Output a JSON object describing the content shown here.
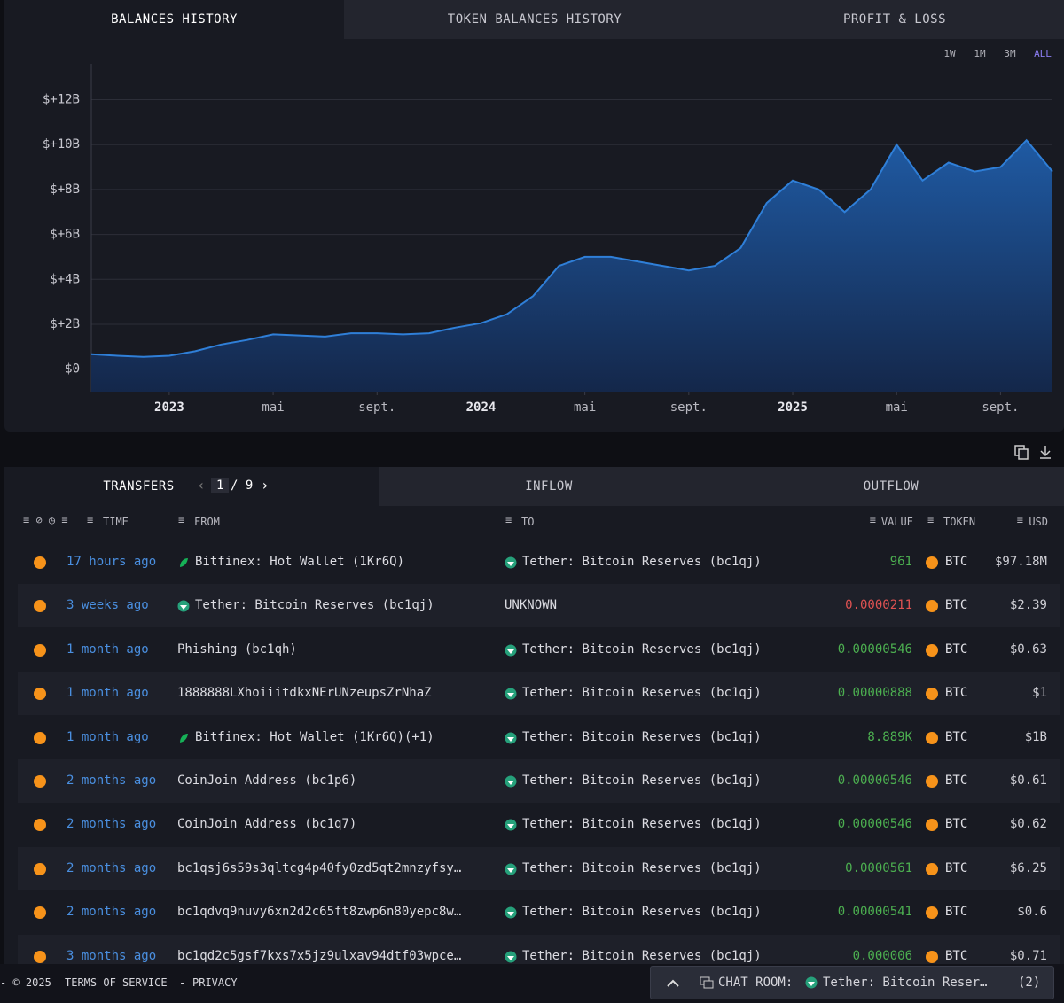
{
  "tabs": [
    "BALANCES HISTORY",
    "TOKEN BALANCES HISTORY",
    "PROFIT & LOSS"
  ],
  "ranges": [
    "1W",
    "1M",
    "3M",
    "ALL"
  ],
  "active_range": 3,
  "chart_data": {
    "type": "area",
    "color": "#2f7fd8",
    "x": [
      "2022-10",
      "2022-11",
      "2022-12",
      "2023-01",
      "2023-02",
      "2023-03",
      "2023-04",
      "2023-05",
      "2023-06",
      "2023-07",
      "2023-08",
      "2023-09",
      "2023-10",
      "2023-11",
      "2023-12",
      "2024-01",
      "2024-02",
      "2024-03",
      "2024-04",
      "2024-05",
      "2024-06",
      "2024-07",
      "2024-08",
      "2024-09",
      "2024-10",
      "2024-11",
      "2024-12",
      "2025-01",
      "2025-02",
      "2025-03",
      "2025-04",
      "2025-05",
      "2025-06",
      "2025-07",
      "2025-08",
      "2025-09",
      "2025-10",
      "2025-11"
    ],
    "values": [
      0.67,
      0.6,
      0.55,
      0.6,
      0.8,
      1.1,
      1.3,
      1.55,
      1.5,
      1.45,
      1.6,
      1.6,
      1.55,
      1.6,
      1.85,
      2.05,
      2.45,
      3.25,
      4.6,
      5.0,
      5.0,
      4.8,
      4.6,
      4.4,
      4.6,
      5.4,
      7.4,
      8.4,
      8.0,
      7.0,
      8.0,
      10.0,
      8.4,
      9.2,
      8.8,
      9.0,
      10.2,
      8.8
    ],
    "xlim": [
      "2022-10",
      "2025-11"
    ],
    "xticks": [
      {
        "value": "2023-01",
        "label": "2023"
      },
      {
        "value": "2023-05",
        "label": "mai"
      },
      {
        "value": "2023-09",
        "label": "sept."
      },
      {
        "value": "2024-01",
        "label": "2024"
      },
      {
        "value": "2024-05",
        "label": "mai"
      },
      {
        "value": "2024-09",
        "label": "sept."
      },
      {
        "value": "2025-01",
        "label": "2025"
      },
      {
        "value": "2025-05",
        "label": "mai"
      },
      {
        "value": "2025-09",
        "label": "sept."
      }
    ],
    "ylim": [
      -1,
      13.6
    ],
    "yticks": [
      {
        "value": 0,
        "label": "$0"
      },
      {
        "value": 2,
        "label": "$+2B"
      },
      {
        "value": 4,
        "label": "$+4B"
      },
      {
        "value": 6,
        "label": "$+6B"
      },
      {
        "value": 8,
        "label": "$+8B"
      },
      {
        "value": 10,
        "label": "$+10B"
      },
      {
        "value": 12,
        "label": "$+12B"
      }
    ],
    "grid": true
  },
  "transfers": {
    "tabs": [
      "TRANSFERS",
      "INFLOW",
      "OUTFLOW"
    ],
    "page": "1",
    "pages": "/ 9",
    "columns": [
      "TIME",
      "FROM",
      "TO",
      "VALUE",
      "TOKEN",
      "USD"
    ],
    "rows": [
      {
        "time": "17 hours ago",
        "from": "Bitfinex: Hot Wallet (1Kr6Q)",
        "to": "Tether: Bitcoin Reserves (bc1qj)",
        "value": "961",
        "value_color": "#4caf50",
        "token": "BTC",
        "usd": "$97.18M"
      },
      {
        "time": "3 weeks ago",
        "from": "Tether: Bitcoin Reserves (bc1qj)",
        "to": "UNKNOWN",
        "value": "0.0000211",
        "value_color": "#e05252",
        "token": "BTC",
        "usd": "$2.39"
      },
      {
        "time": "1 month ago",
        "from": "Phishing (bc1qh)",
        "to": "Tether: Bitcoin Reserves (bc1qj)",
        "value": "0.00000546",
        "value_color": "#4caf50",
        "token": "BTC",
        "usd": "$0.63"
      },
      {
        "time": "1 month ago",
        "from": "1888888LXhoiiitdkxNErUNzeupsZrNhaZ",
        "to": "Tether: Bitcoin Reserves (bc1qj)",
        "value": "0.00000888",
        "value_color": "#4caf50",
        "token": "BTC",
        "usd": "$1"
      },
      {
        "time": "1 month ago",
        "from": "Bitfinex: Hot Wallet (1Kr6Q)(+1)",
        "to": "Tether: Bitcoin Reserves (bc1qj)",
        "value": "8.889K",
        "value_color": "#4caf50",
        "token": "BTC",
        "usd": "$1B"
      },
      {
        "time": "2 months ago",
        "from": "CoinJoin Address (bc1p6)",
        "to": "Tether: Bitcoin Reserves (bc1qj)",
        "value": "0.00000546",
        "value_color": "#4caf50",
        "token": "BTC",
        "usd": "$0.61"
      },
      {
        "time": "2 months ago",
        "from": "CoinJoin Address (bc1q7)",
        "to": "Tether: Bitcoin Reserves (bc1qj)",
        "value": "0.00000546",
        "value_color": "#4caf50",
        "token": "BTC",
        "usd": "$0.62"
      },
      {
        "time": "2 months ago",
        "from": "bc1qsj6s59s3qltcg4p40fy0zd5qt2mnzyfsy…",
        "to": "Tether: Bitcoin Reserves (bc1qj)",
        "value": "0.0000561",
        "value_color": "#4caf50",
        "token": "BTC",
        "usd": "$6.25"
      },
      {
        "time": "2 months ago",
        "from": "bc1qdvq9nuvy6xn2d2c65ft8zwp6n80yepc8w…",
        "to": "Tether: Bitcoin Reserves (bc1qj)",
        "value": "0.00000541",
        "value_color": "#4caf50",
        "token": "BTC",
        "usd": "$0.6"
      },
      {
        "time": "3 months ago",
        "from": "bc1qd2c5gsf7kxs7x5jz9ulxav94dtf03wpce…",
        "to": "Tether: Bitcoin Reserves (bc1qj)",
        "value": "0.000006",
        "value_color": "#4caf50",
        "token": "BTC",
        "usd": "$0.71"
      }
    ]
  },
  "footer": {
    "copyright": "- © 2025",
    "terms": "TERMS OF SERVICE",
    "separator": "-",
    "privacy": "PRIVACY",
    "chat_label": "CHAT ROOM:",
    "chat_room": "Tether: Bitcoin Reser…",
    "chat_count": "(2)"
  }
}
